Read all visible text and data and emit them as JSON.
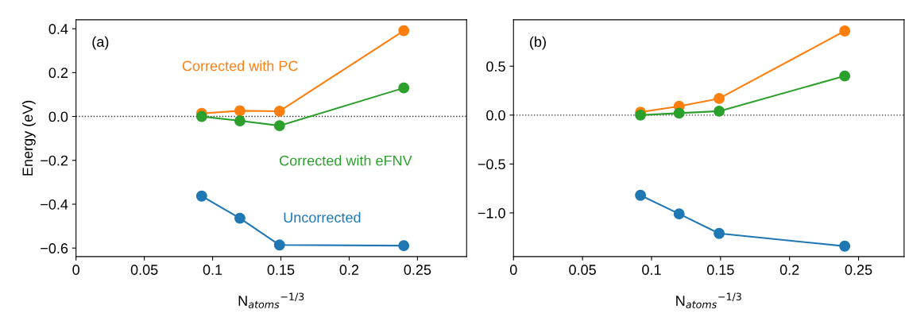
{
  "chart_data": [
    {
      "type": "line",
      "ylabel": "Energy (eV)",
      "xlabel": "N$_{atoms}$$^{−1/3}$",
      "marker": "circle",
      "line_style": "solid",
      "grid": false,
      "legend": false,
      "x": [
        0.092,
        0.12,
        0.149,
        0.24
      ],
      "xlim": [
        0,
        0.286
      ],
      "xticks": [
        0,
        0.05,
        0.1,
        0.15,
        0.2,
        0.25
      ],
      "ylim": [
        -0.639,
        0.441
      ],
      "yticks": [
        {
          "value": -0.6,
          "label": "−0.6"
        },
        {
          "value": -0.4,
          "label": "−0.4"
        },
        {
          "value": -0.2,
          "label": "−0.2"
        },
        {
          "value": 0,
          "label": "0.0"
        },
        {
          "value": 0.2,
          "label": "0.2"
        },
        {
          "value": 0.4,
          "label": "0.4"
        }
      ],
      "series": [
        {
          "name": "Corrected with PC",
          "color": "#ff7f0e",
          "values": [
            0.014,
            0.026,
            0.024,
            0.391
          ]
        },
        {
          "name": "Corrected with eFNV",
          "color": "#2ca02c",
          "values": [
            0.0,
            -0.02,
            -0.042,
            0.13
          ]
        },
        {
          "name": "Uncorrected",
          "color": "#1f77b4",
          "values": [
            -0.363,
            -0.464,
            -0.586,
            -0.589
          ]
        }
      ],
      "ref_lines": [
        {
          "axis": "y",
          "value": 0,
          "color": "#333333",
          "line_style": "dotted"
        }
      ],
      "annotations": [
        "(a)"
      ]
    },
    {
      "type": "line",
      "xlabel": "N$_{atoms}$$^{−1/3}$",
      "marker": "circle",
      "line_style": "solid",
      "grid": false,
      "legend": false,
      "x": [
        0.092,
        0.12,
        0.149,
        0.24
      ],
      "xlim": [
        0,
        0.283
      ],
      "xticks": [
        0,
        0.05,
        0.1,
        0.15,
        0.2,
        0.25
      ],
      "ylim": [
        -1.447,
        0.975
      ],
      "yticks": [
        {
          "value": -1.0,
          "label": "−1.0"
        },
        {
          "value": -0.5,
          "label": "−0.5"
        },
        {
          "value": 0,
          "label": "0.0"
        },
        {
          "value": 0.5,
          "label": "0.5"
        }
      ],
      "series": [
        {
          "color": "#ff7f0e",
          "values": [
            0.03,
            0.09,
            0.17,
            0.86
          ]
        },
        {
          "color": "#2ca02c",
          "values": [
            0.0,
            0.02,
            0.04,
            0.4
          ]
        },
        {
          "color": "#1f77b4",
          "values": [
            -0.82,
            -1.01,
            -1.21,
            -1.34
          ]
        }
      ],
      "ref_lines": [
        {
          "axis": "y",
          "value": 0,
          "color": "#333333",
          "line_style": "dotted"
        }
      ],
      "annotations": [
        "(b)"
      ]
    }
  ]
}
